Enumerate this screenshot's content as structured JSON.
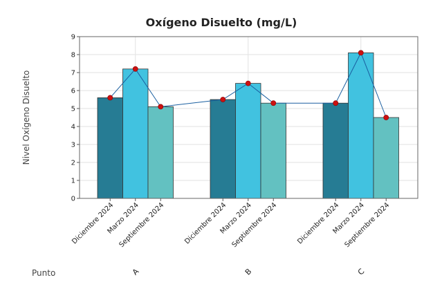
{
  "chart_data": {
    "type": "bar",
    "title": "Oxígeno Disuelto (mg/L)",
    "ylabel": "Nivel Oxígeno Disuelto",
    "xlabel": "Punto",
    "ylim": [
      0,
      9
    ],
    "yticks": [
      0,
      1,
      2,
      3,
      4,
      5,
      6,
      7,
      8,
      9
    ],
    "grid": true,
    "groups": [
      {
        "name": "A",
        "categories": [
          "Diciembre 2024",
          "Marzo 2024",
          "Septiembre 2024"
        ],
        "values": [
          5.6,
          7.2,
          5.1
        ]
      },
      {
        "name": "B",
        "categories": [
          "Diciembre 2024",
          "Marzo 2024",
          "Septiembre 2024"
        ],
        "values": [
          5.5,
          6.4,
          5.3
        ]
      },
      {
        "name": "C",
        "categories": [
          "Diciembre 2024",
          "Marzo 2024",
          "Septiembre 2024"
        ],
        "values": [
          5.3,
          8.1,
          4.5
        ]
      }
    ],
    "colors": {
      "Diciembre 2024": "#267c94",
      "Marzo 2024": "#41c2e0",
      "Septiembre 2024": "#63c1c1",
      "line": "#1a5fa0",
      "marker": "#cc1111"
    },
    "overlay": "line with markers connecting bar values"
  }
}
